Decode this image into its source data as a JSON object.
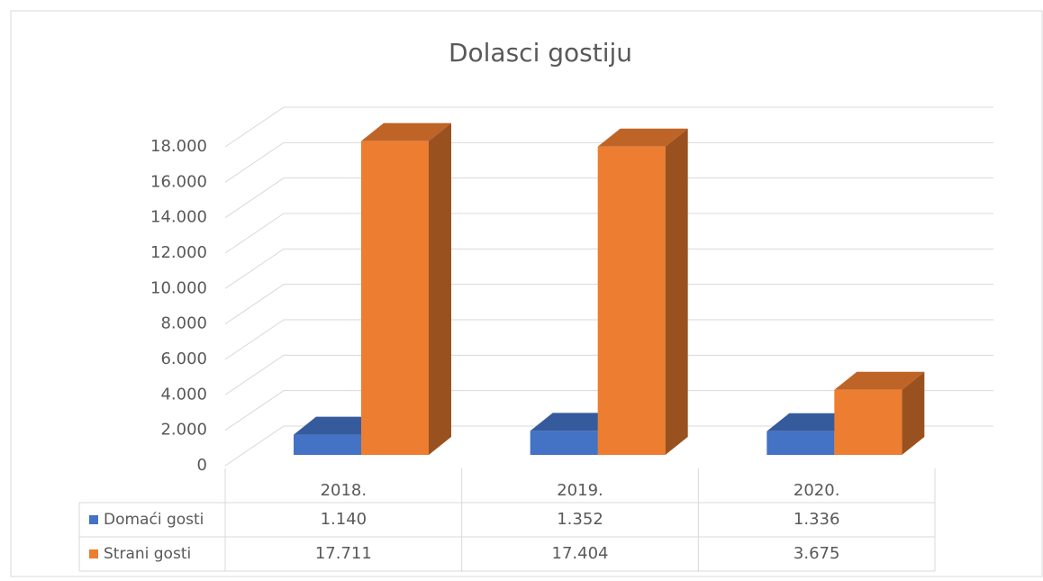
{
  "chart_data": {
    "type": "bar3d",
    "title": "Dolasci gostiju",
    "categories": [
      "2018.",
      "2019.",
      "2020."
    ],
    "series": [
      {
        "name": "Domaći gosti",
        "color": "#4472c4",
        "values": [
          1140,
          1352,
          1336
        ],
        "value_labels": [
          "1.140",
          "1.352",
          "1.336"
        ]
      },
      {
        "name": "Strani gosti",
        "color": "#ed7d31",
        "values": [
          17711,
          17404,
          3675
        ],
        "value_labels": [
          "17.711",
          "17.404",
          "3.675"
        ]
      }
    ],
    "ylim": [
      0,
      18000
    ],
    "yticks": [
      0,
      {
        "value": 2000,
        "label": "2.000"
      },
      {
        "value": 4000,
        "label": "4.000"
      },
      {
        "value": 6000,
        "label": "6.000"
      },
      {
        "value": 8000,
        "label": "8.000"
      },
      {
        "value": 10000,
        "label": "10.000"
      },
      {
        "value": 12000,
        "label": "12.000"
      },
      {
        "value": 14000,
        "label": "14.000"
      },
      {
        "value": 16000,
        "label": "16.000"
      },
      {
        "value": 18000,
        "label": "18.000"
      }
    ],
    "grid": true,
    "data_table": true
  }
}
